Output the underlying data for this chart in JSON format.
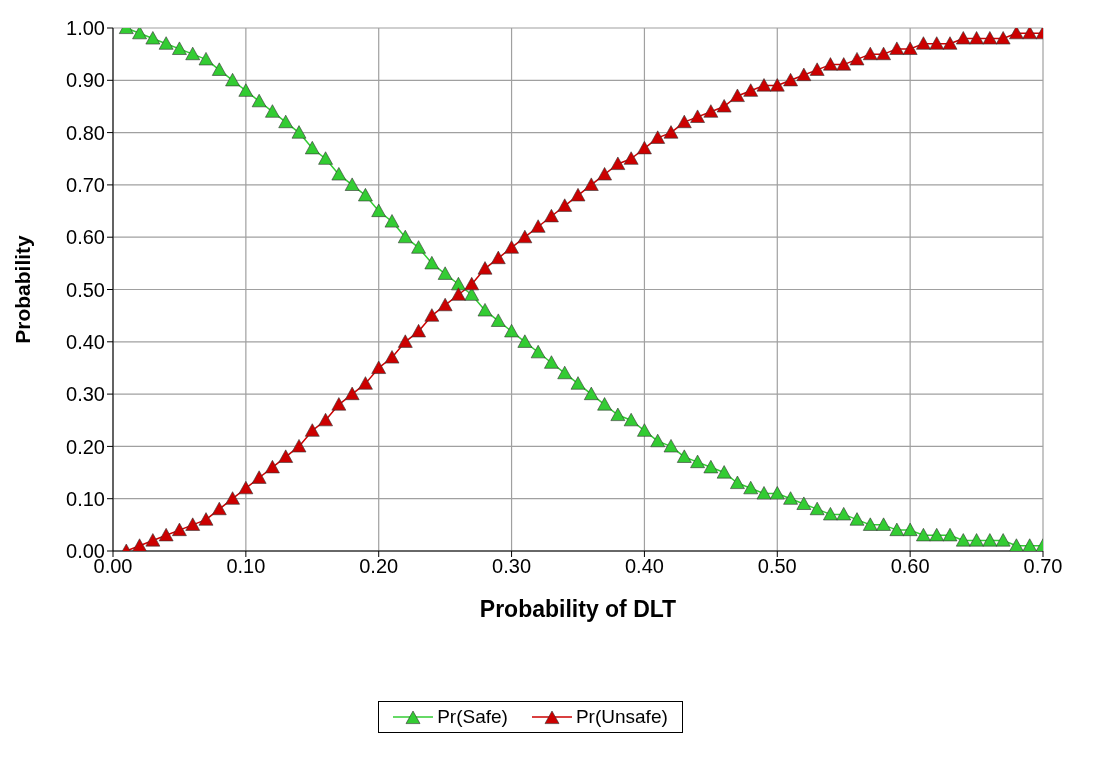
{
  "chart_data": {
    "type": "line",
    "xlabel": "Probability of DLT",
    "ylabel": "Probability",
    "x": [
      0.01,
      0.02,
      0.03,
      0.04,
      0.05,
      0.06,
      0.07,
      0.08,
      0.09,
      0.1,
      0.11,
      0.12,
      0.13,
      0.14,
      0.15,
      0.16,
      0.17,
      0.18,
      0.19,
      0.2,
      0.21,
      0.22,
      0.23,
      0.24,
      0.25,
      0.26,
      0.27,
      0.28,
      0.29,
      0.3,
      0.31,
      0.32,
      0.33,
      0.34,
      0.35,
      0.36,
      0.37,
      0.38,
      0.39,
      0.4,
      0.41,
      0.42,
      0.43,
      0.44,
      0.45,
      0.46,
      0.47,
      0.48,
      0.49,
      0.5,
      0.51,
      0.52,
      0.53,
      0.54,
      0.55,
      0.56,
      0.57,
      0.58,
      0.59,
      0.6,
      0.61,
      0.62,
      0.63,
      0.64,
      0.65,
      0.66,
      0.67,
      0.68,
      0.69,
      0.7
    ],
    "series": [
      {
        "name": "Pr(Safe)",
        "color": "#33cc33",
        "values": [
          1.0,
          0.99,
          0.98,
          0.97,
          0.96,
          0.95,
          0.94,
          0.92,
          0.9,
          0.88,
          0.86,
          0.84,
          0.82,
          0.8,
          0.77,
          0.75,
          0.72,
          0.7,
          0.68,
          0.65,
          0.63,
          0.6,
          0.58,
          0.55,
          0.53,
          0.51,
          0.49,
          0.46,
          0.44,
          0.42,
          0.4,
          0.38,
          0.36,
          0.34,
          0.32,
          0.3,
          0.28,
          0.26,
          0.25,
          0.23,
          0.21,
          0.2,
          0.18,
          0.17,
          0.16,
          0.15,
          0.13,
          0.12,
          0.11,
          0.11,
          0.1,
          0.09,
          0.08,
          0.07,
          0.07,
          0.06,
          0.05,
          0.05,
          0.04,
          0.04,
          0.03,
          0.03,
          0.03,
          0.02,
          0.02,
          0.02,
          0.02,
          0.01,
          0.01,
          0.01
        ]
      },
      {
        "name": "Pr(Unsafe)",
        "color": "#cc0000",
        "values": [
          0.0,
          0.01,
          0.02,
          0.03,
          0.04,
          0.05,
          0.06,
          0.08,
          0.1,
          0.12,
          0.14,
          0.16,
          0.18,
          0.2,
          0.23,
          0.25,
          0.28,
          0.3,
          0.32,
          0.35,
          0.37,
          0.4,
          0.42,
          0.45,
          0.47,
          0.49,
          0.51,
          0.54,
          0.56,
          0.58,
          0.6,
          0.62,
          0.64,
          0.66,
          0.68,
          0.7,
          0.72,
          0.74,
          0.75,
          0.77,
          0.79,
          0.8,
          0.82,
          0.83,
          0.84,
          0.85,
          0.87,
          0.88,
          0.89,
          0.89,
          0.9,
          0.91,
          0.92,
          0.93,
          0.93,
          0.94,
          0.95,
          0.95,
          0.96,
          0.96,
          0.97,
          0.97,
          0.97,
          0.98,
          0.98,
          0.98,
          0.98,
          0.99,
          0.99,
          0.99
        ]
      }
    ],
    "xlim": [
      0,
      0.7
    ],
    "xticks": [
      {
        "value": 0,
        "label": "0.00"
      },
      {
        "value": 0.1,
        "label": "0.10"
      },
      {
        "value": 0.2,
        "label": "0.20"
      },
      {
        "value": 0.3,
        "label": "0.30"
      },
      {
        "value": 0.4,
        "label": "0.40"
      },
      {
        "value": 0.5,
        "label": "0.50"
      },
      {
        "value": 0.6,
        "label": "0.60"
      },
      {
        "value": 0.7,
        "label": "0.70"
      }
    ],
    "ylim": [
      0,
      1
    ],
    "yticks": [
      {
        "value": 0,
        "label": "0.00"
      },
      {
        "value": 0.1,
        "label": "0.10"
      },
      {
        "value": 0.2,
        "label": "0.20"
      },
      {
        "value": 0.3,
        "label": "0.30"
      },
      {
        "value": 0.4,
        "label": "0.40"
      },
      {
        "value": 0.5,
        "label": "0.50"
      },
      {
        "value": 0.6,
        "label": "0.60"
      },
      {
        "value": 0.7,
        "label": "0.70"
      },
      {
        "value": 0.8,
        "label": "0.80"
      },
      {
        "value": 0.9,
        "label": "0.90"
      },
      {
        "value": 1,
        "label": "1.00"
      }
    ],
    "grid": true,
    "legend": "bottom",
    "marker": "triangle",
    "line_style": "solid"
  }
}
